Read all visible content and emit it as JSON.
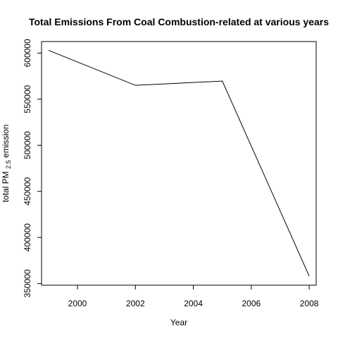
{
  "chart_data": {
    "type": "line",
    "title": "Total Emissions From Coal Combustion-related at various years",
    "xlabel": "Year",
    "ylabel": {
      "prefix": "total PM",
      "subscript": "2.5",
      "suffix": " emission"
    },
    "x": [
      1999,
      2002,
      2005,
      2008
    ],
    "series": [
      {
        "values": [
          603000,
          565000,
          569600,
          358000
        ]
      }
    ],
    "xlim": [
      1998.76,
      2008.24
    ],
    "ylim": [
      348200,
      612500
    ],
    "xticks": [
      2000,
      2002,
      2004,
      2006,
      2008
    ],
    "xtick_labels": [
      "2000",
      "2002",
      "2004",
      "2006",
      "2008"
    ],
    "yticks": [
      350000,
      400000,
      450000,
      500000,
      550000,
      600000
    ],
    "ytick_labels": [
      "350000",
      "400000",
      "450000",
      "500000",
      "550000",
      "600000"
    ],
    "grid": false,
    "line_color": "#000000"
  }
}
